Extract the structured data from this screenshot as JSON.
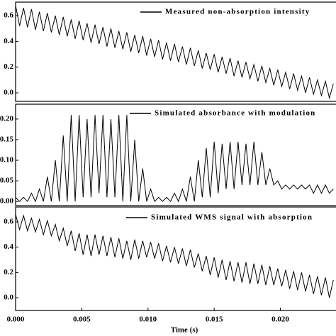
{
  "chart_data": [
    {
      "type": "line",
      "x": [
        0,
        0.0003,
        0.0006,
        0.0009,
        0.0012,
        0.0015,
        0.0018,
        0.0021,
        0.0024,
        0.0027,
        0.003,
        0.0033,
        0.0036,
        0.0039,
        0.0042,
        0.0045,
        0.0048,
        0.0051,
        0.0054,
        0.0057,
        0.006,
        0.0063,
        0.0066,
        0.0069,
        0.0072,
        0.0075,
        0.0078,
        0.0081,
        0.0084,
        0.0087,
        0.009,
        0.0093,
        0.0096,
        0.0099,
        0.0102,
        0.0105,
        0.0108,
        0.0111,
        0.0114,
        0.0117,
        0.012,
        0.0123,
        0.0126,
        0.0129,
        0.0132,
        0.0135,
        0.0138,
        0.0141,
        0.0144,
        0.0147,
        0.015,
        0.0153,
        0.0156,
        0.0159,
        0.0162,
        0.0165,
        0.0168,
        0.0171,
        0.0174,
        0.0177,
        0.018,
        0.0183,
        0.0186,
        0.0189,
        0.0192,
        0.0195,
        0.0198,
        0.0201,
        0.0204,
        0.0207,
        0.021,
        0.0213,
        0.0216,
        0.0219,
        0.0222,
        0.0225,
        0.0228,
        0.0231,
        0.0234,
        0.0237,
        0.024
      ],
      "xlim": [
        0,
        0.0242
      ],
      "ylim": [
        -0.066,
        0.705
      ],
      "yticks": [
        0.6,
        0.4,
        0.2,
        {
          "value": 0,
          "label": "0.0"
        }
      ],
      "series": [
        {
          "name": "Measured non-absorption intensity",
          "color": "#000000",
          "values": [
            0.68,
            0.52,
            0.66,
            0.51,
            0.65,
            0.49,
            0.63,
            0.48,
            0.62,
            0.47,
            0.6,
            0.45,
            0.59,
            0.44,
            0.57,
            0.42,
            0.56,
            0.41,
            0.54,
            0.39,
            0.53,
            0.38,
            0.51,
            0.36,
            0.5,
            0.35,
            0.48,
            0.34,
            0.47,
            0.32,
            0.45,
            0.31,
            0.44,
            0.29,
            0.42,
            0.28,
            0.41,
            0.26,
            0.39,
            0.25,
            0.38,
            0.24,
            0.36,
            0.22,
            0.35,
            0.21,
            0.33,
            0.19,
            0.31,
            0.18,
            0.3,
            0.16,
            0.28,
            0.15,
            0.27,
            0.13,
            0.25,
            0.12,
            0.24,
            0.11,
            0.22,
            0.09,
            0.21,
            0.08,
            0.19,
            0.06,
            0.18,
            0.05,
            0.16,
            0.03,
            0.15,
            0.02,
            0.13,
            0.0,
            0.12,
            -0.01,
            0.1,
            -0.02,
            0.09,
            -0.04,
            0.07
          ]
        }
      ]
    },
    {
      "type": "line",
      "x": [
        0,
        0.0003,
        0.0006,
        0.0009,
        0.0012,
        0.0015,
        0.0018,
        0.0021,
        0.0024,
        0.0027,
        0.003,
        0.0033,
        0.0036,
        0.0039,
        0.0042,
        0.0045,
        0.0048,
        0.0051,
        0.0054,
        0.0057,
        0.006,
        0.0063,
        0.0066,
        0.0069,
        0.0072,
        0.0075,
        0.0078,
        0.0081,
        0.0084,
        0.0087,
        0.009,
        0.0093,
        0.0096,
        0.0099,
        0.0102,
        0.0105,
        0.0108,
        0.0111,
        0.0114,
        0.0117,
        0.012,
        0.0123,
        0.0126,
        0.0129,
        0.0132,
        0.0135,
        0.0138,
        0.0141,
        0.0144,
        0.0147,
        0.015,
        0.0153,
        0.0156,
        0.0159,
        0.0162,
        0.0165,
        0.0168,
        0.0171,
        0.0174,
        0.0177,
        0.018,
        0.0183,
        0.0186,
        0.0189,
        0.0192,
        0.0195,
        0.0198,
        0.0201,
        0.0204,
        0.0207,
        0.021,
        0.0213,
        0.0216,
        0.0219,
        0.0222,
        0.0225,
        0.0228,
        0.0231,
        0.0234,
        0.0237,
        0.024
      ],
      "xlim": [
        0,
        0.0242
      ],
      "ylim": [
        -0.01,
        0.236
      ],
      "yticks": [
        {
          "value": 0.2,
          "label": "0.20"
        },
        {
          "value": 0.15,
          "label": "0.15"
        },
        {
          "value": 0.1,
          "label": "0.10"
        },
        {
          "value": 0.05,
          "label": "0.05"
        },
        {
          "value": 0,
          "label": "0.00"
        }
      ],
      "series": [
        {
          "name": "Simulated absorbance with modulation",
          "color": "#000000",
          "values": [
            0.01,
            0,
            0.01,
            0,
            0.02,
            0,
            0.03,
            0,
            0.06,
            0,
            0.1,
            0,
            0.16,
            0,
            0.21,
            0,
            0.21,
            0.01,
            0.2,
            0.01,
            0.21,
            0.02,
            0.21,
            0.01,
            0.2,
            0.01,
            0.21,
            0,
            0.21,
            0,
            0.15,
            0,
            0.08,
            0,
            0.03,
            0,
            0.01,
            0,
            0.01,
            0,
            0.02,
            0,
            0.03,
            0,
            0.06,
            0,
            0.1,
            0.01,
            0.13,
            0.01,
            0.145,
            0.02,
            0.14,
            0.03,
            0.145,
            0.03,
            0.145,
            0.04,
            0.14,
            0.04,
            0.145,
            0.04,
            0.12,
            0.04,
            0.08,
            0.04,
            0.05,
            0.03,
            0.04,
            0.03,
            0.04,
            0.03,
            0.04,
            0.03,
            0.04,
            0.02,
            0.04,
            0.02,
            0.04,
            0.02,
            0.03
          ]
        }
      ]
    },
    {
      "type": "line",
      "x": [
        0,
        0.0003,
        0.0006,
        0.0009,
        0.0012,
        0.0015,
        0.0018,
        0.0021,
        0.0024,
        0.0027,
        0.003,
        0.0033,
        0.0036,
        0.0039,
        0.0042,
        0.0045,
        0.0048,
        0.0051,
        0.0054,
        0.0057,
        0.006,
        0.0063,
        0.0066,
        0.0069,
        0.0072,
        0.0075,
        0.0078,
        0.0081,
        0.0084,
        0.0087,
        0.009,
        0.0093,
        0.0096,
        0.0099,
        0.0102,
        0.0105,
        0.0108,
        0.0111,
        0.0114,
        0.0117,
        0.012,
        0.0123,
        0.0126,
        0.0129,
        0.0132,
        0.0135,
        0.0138,
        0.0141,
        0.0144,
        0.0147,
        0.015,
        0.0153,
        0.0156,
        0.0159,
        0.0162,
        0.0165,
        0.0168,
        0.0171,
        0.0174,
        0.0177,
        0.018,
        0.0183,
        0.0186,
        0.0189,
        0.0192,
        0.0195,
        0.0198,
        0.0201,
        0.0204,
        0.0207,
        0.021,
        0.0213,
        0.0216,
        0.0219,
        0.0222,
        0.0225,
        0.0228,
        0.0231,
        0.0234,
        0.0237,
        0.024
      ],
      "xlim": [
        0,
        0.0242
      ],
      "xticks": [
        {
          "value": 0,
          "label": "0.000"
        },
        {
          "value": 0.005,
          "label": "0.005"
        },
        {
          "value": 0.01,
          "label": "0.010"
        },
        {
          "value": 0.015,
          "label": "0.015"
        },
        {
          "value": 0.02,
          "label": "0.020"
        }
      ],
      "xlabel": "Time (s)",
      "ylim": [
        -0.101,
        0.718
      ],
      "yticks": [
        0.6,
        0.4,
        0.2,
        {
          "value": 0,
          "label": "0.0"
        }
      ],
      "series": [
        {
          "name": "Simulated WMS signal with absorption",
          "color": "#000000",
          "values": [
            0.66,
            0.54,
            0.65,
            0.53,
            0.63,
            0.52,
            0.62,
            0.5,
            0.61,
            0.49,
            0.58,
            0.45,
            0.55,
            0.41,
            0.53,
            0.37,
            0.51,
            0.34,
            0.5,
            0.33,
            0.5,
            0.34,
            0.49,
            0.33,
            0.48,
            0.32,
            0.47,
            0.31,
            0.45,
            0.3,
            0.46,
            0.31,
            0.45,
            0.32,
            0.44,
            0.31,
            0.43,
            0.29,
            0.41,
            0.28,
            0.4,
            0.27,
            0.39,
            0.25,
            0.38,
            0.24,
            0.35,
            0.21,
            0.33,
            0.18,
            0.32,
            0.16,
            0.3,
            0.14,
            0.29,
            0.13,
            0.28,
            0.12,
            0.28,
            0.11,
            0.27,
            0.11,
            0.26,
            0.1,
            0.25,
            0.1,
            0.23,
            0.09,
            0.22,
            0.07,
            0.21,
            0.06,
            0.2,
            0.05,
            0.18,
            0.03,
            0.17,
            0.02,
            0.16,
            0.0,
            0.14
          ]
        }
      ]
    }
  ]
}
